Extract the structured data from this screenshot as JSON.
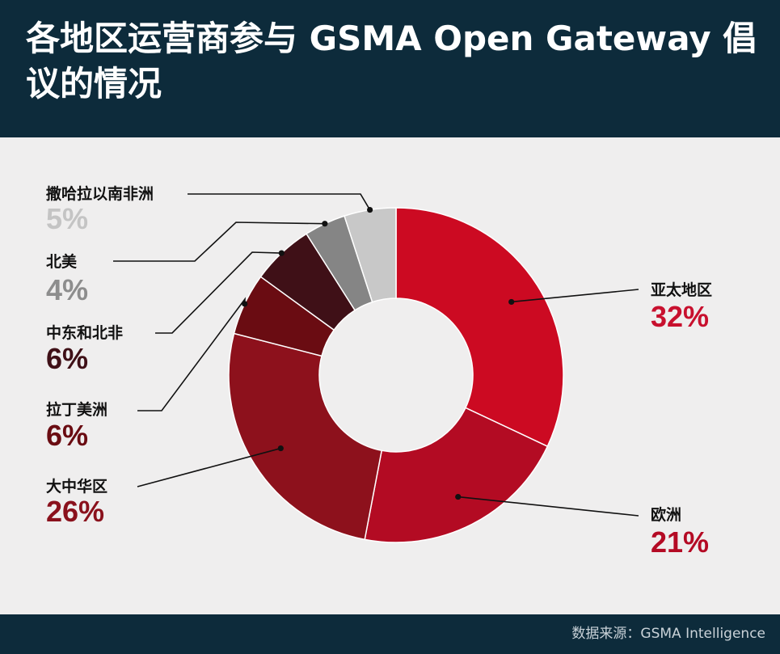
{
  "title": "各地区运营商参与 GSMA Open Gateway 倡议的情况",
  "footer": {
    "source": "数据来源：GSMA Intelligence"
  },
  "colors": {
    "header_bg": "#0d2b3b",
    "background": "#efeeee"
  },
  "chart_data": {
    "type": "pie",
    "donut": true,
    "title": "各地区运营商参与 GSMA Open Gateway 倡议的情况",
    "unit": "%",
    "slices": [
      {
        "label": "亚太地区",
        "value": 32,
        "value_label": "32%",
        "color": "#cc0a22",
        "text_color": "#c8102e"
      },
      {
        "label": "欧洲",
        "value": 21,
        "value_label": "21%",
        "color": "#b30b23",
        "text_color": "#b40a24"
      },
      {
        "label": "大中华区",
        "value": 26,
        "value_label": "26%",
        "color": "#8d111c",
        "text_color": "#8a111c"
      },
      {
        "label": "拉丁美洲",
        "value": 6,
        "value_label": "6%",
        "color": "#6a0c12",
        "text_color": "#6a0c12"
      },
      {
        "label": "中东和北非",
        "value": 6,
        "value_label": "6%",
        "color": "#3f1017",
        "text_color": "#3f1017"
      },
      {
        "label": "北美",
        "value": 4,
        "value_label": "4%",
        "color": "#858585",
        "text_color": "#8d8d8d"
      },
      {
        "label": "撒哈拉以南非洲",
        "value": 5,
        "value_label": "5%",
        "color": "#c8c8c8",
        "text_color": "#c4c4c4"
      }
    ]
  }
}
